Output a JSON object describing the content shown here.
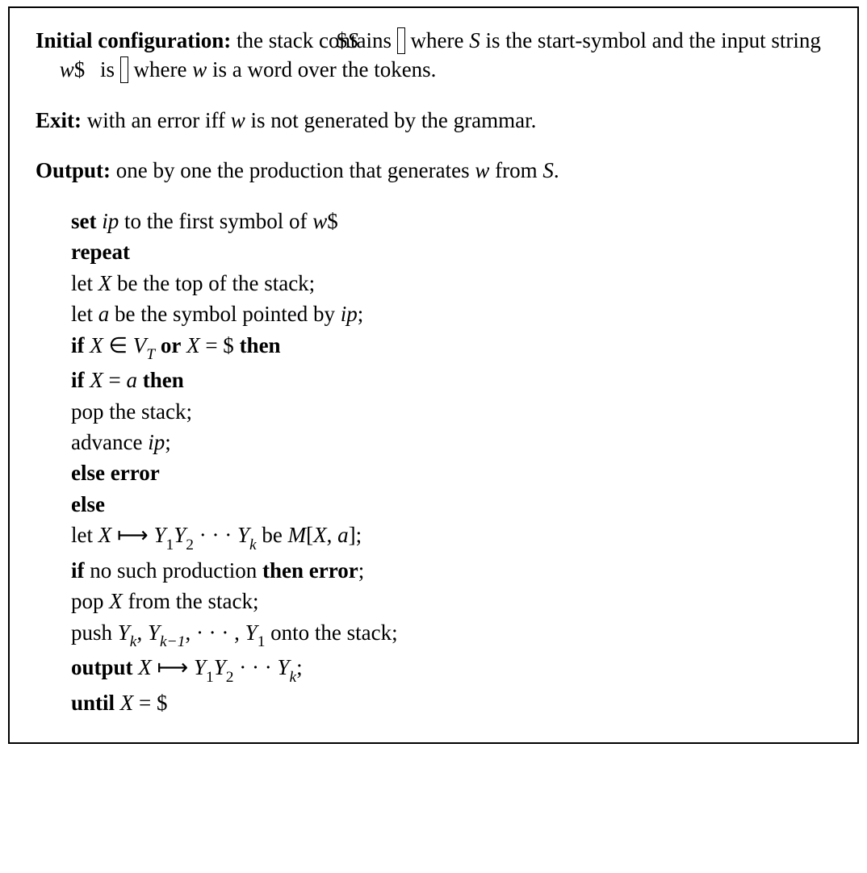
{
  "header": {
    "initConfig": {
      "label": "Initial configuration:",
      "pre1": " the stack contains ",
      "box1_dollar": "$",
      "box1_S": "S",
      "post1_pre": " where ",
      "S": "S",
      "post1_post": " is the start-symbol and the input string is ",
      "box2_w": "w",
      "box2_dollar": "$",
      "post2_pre": " where ",
      "w": "w",
      "post2_post": " is a word over the tokens."
    },
    "exit": {
      "label": "Exit:",
      "pre": " with an error iff ",
      "w": "w",
      "post": " is not generated by the grammar."
    },
    "output": {
      "label": "Output:",
      "pre": " one by one the production that generates ",
      "w": "w",
      "mid": " from ",
      "S": "S",
      "end": "."
    }
  },
  "algo": {
    "set": {
      "kw": "set",
      "ip": "ip",
      "mid": " to the first symbol of ",
      "w": "w",
      "dollar": "$"
    },
    "repeat": "repeat",
    "letX": {
      "pre": "let ",
      "X": "X",
      "post": " be the top of the stack;"
    },
    "leta": {
      "pre": "let ",
      "a": "a",
      "mid": " be the symbol pointed by ",
      "ip": "ip",
      "end": ";"
    },
    "ifX": {
      "if": "if",
      "X": "X",
      "in": " ∈ ",
      "V": "V",
      "Tsub": "T",
      "or": "or",
      "X2": "X",
      "eq": " = $ ",
      "then": "then"
    },
    "ifXa": {
      "if": "if",
      "X": "X",
      "eq": " = ",
      "a": "a",
      "then": "then"
    },
    "pop1": "pop the stack;",
    "advance": {
      "pre": "advance ",
      "ip": "ip",
      "end": ";"
    },
    "elseError": {
      "else": "else",
      "error": "error"
    },
    "else": "else",
    "letProd": {
      "pre": "let ",
      "X": "X",
      "arrow": " ⟼ ",
      "Y": "Y",
      "s1": "1",
      "Y2": "Y",
      "s2": "2",
      "dots": " · · · ",
      "Yk": "Y",
      "sk": "k",
      "be": " be ",
      "M": "M",
      "lb": "[",
      "Xa": "X",
      "comma": ", ",
      "a": "a",
      "rb": "];"
    },
    "noSuch": {
      "if": "if",
      "mid": " no such production ",
      "then": "then",
      "error": "error",
      "end": ";"
    },
    "popX": {
      "pre": "pop ",
      "X": "X",
      "post": " from the stack;"
    },
    "push": {
      "pre": "push ",
      "Y": "Y",
      "sk": "k",
      "c1": ", ",
      "Y2": "Y",
      "skm1": "k−1",
      "c2": ", ",
      "dots": "· · ·",
      "c3": " , ",
      "Y1": "Y",
      "s1": "1",
      "post": " onto the stack;"
    },
    "out": {
      "kw": "output",
      "X": "X",
      "arrow": " ⟼ ",
      "Y": "Y",
      "s1": "1",
      "Y2": "Y",
      "s2": "2",
      "dots": " · · · ",
      "Yk": "Y",
      "sk": "k",
      "end": ";"
    },
    "until": {
      "kw": "until",
      "X": "X",
      "eq": " = $"
    }
  }
}
